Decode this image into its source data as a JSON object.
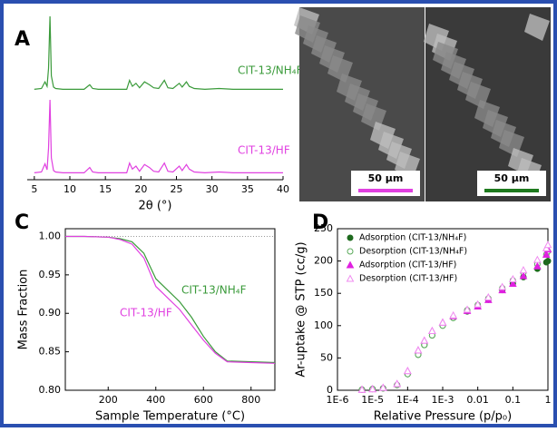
{
  "chart_data": [
    {
      "type": "line",
      "panel_label": "A",
      "xlabel": "2θ (°)",
      "xlim": [
        4,
        40
      ],
      "xticks": [
        5,
        10,
        15,
        20,
        25,
        30,
        35,
        40
      ],
      "ylim": [
        0,
        100
      ],
      "legend": "inline",
      "x": [
        5,
        6,
        6.5,
        6.8,
        7,
        7.2,
        7.4,
        7.7,
        8,
        9,
        10,
        12,
        12.8,
        13.2,
        14,
        16,
        18,
        18.4,
        18.8,
        19.3,
        19.8,
        20.5,
        21.2,
        21.8,
        22.5,
        23.3,
        23.8,
        24.5,
        25.4,
        25.8,
        26.4,
        26.8,
        27.5,
        29,
        31,
        33,
        35,
        37,
        40
      ],
      "series": [
        {
          "name": "CIT-13/NH₄F",
          "color": "#3a9a3a",
          "values": [
            2,
            3,
            12,
            6,
            30,
            100,
            20,
            5,
            3,
            2,
            2,
            2,
            8,
            3,
            2,
            2,
            2,
            14,
            6,
            10,
            4,
            12,
            8,
            4,
            3,
            14,
            4,
            3,
            10,
            5,
            12,
            6,
            3,
            2,
            3,
            2,
            2,
            2,
            2
          ]
        },
        {
          "name": "CIT-13/HF",
          "color": "#e040e0",
          "values": [
            2,
            3,
            14,
            6,
            35,
            100,
            22,
            5,
            3,
            2,
            2,
            2,
            9,
            3,
            2,
            2,
            2,
            15,
            7,
            11,
            4,
            13,
            9,
            4,
            3,
            15,
            4,
            3,
            11,
            5,
            13,
            7,
            3,
            2,
            3,
            2,
            2,
            2,
            2
          ]
        }
      ]
    },
    {
      "type": "image",
      "panel_label": "B",
      "scale_bars": [
        {
          "label": "50 µm",
          "color": "#e040e0"
        },
        {
          "label": "50 µm",
          "color": "#1e7a1e"
        }
      ]
    },
    {
      "type": "line",
      "panel_label": "C",
      "xlabel": "Sample Temperature (°C)",
      "ylabel": "Mass Fraction",
      "xlim": [
        20,
        900
      ],
      "xticks": [
        200,
        400,
        600,
        800
      ],
      "ylim": [
        0.8,
        1.01
      ],
      "yticks": [
        {
          "value": 0.8,
          "label": "0.80"
        },
        {
          "value": 0.85,
          "label": "0.85"
        },
        {
          "value": 0.9,
          "label": "0.90"
        },
        {
          "value": 0.95,
          "label": "0.95"
        },
        {
          "value": 1.0,
          "label": "1.00"
        }
      ],
      "reference_line": 1.0,
      "legend": "inline",
      "x": [
        20,
        100,
        200,
        250,
        300,
        350,
        400,
        450,
        500,
        550,
        600,
        650,
        700,
        800,
        900
      ],
      "series": [
        {
          "name": "CIT-13/NH₄F",
          "color": "#3a9a3a",
          "values": [
            1,
            1,
            0.999,
            0.997,
            0.993,
            0.978,
            0.945,
            0.93,
            0.915,
            0.895,
            0.87,
            0.85,
            0.838,
            0.837,
            0.836
          ]
        },
        {
          "name": "CIT-13/HF",
          "color": "#e040e0",
          "values": [
            1,
            1,
            0.999,
            0.996,
            0.99,
            0.972,
            0.935,
            0.92,
            0.905,
            0.885,
            0.865,
            0.848,
            0.837,
            0.836,
            0.835
          ]
        }
      ]
    },
    {
      "type": "scatter",
      "panel_label": "D",
      "xlabel": "Relative Pressure (p/p₀)",
      "ylabel": "Ar-uptake @ STP (cc/g)",
      "xlog": true,
      "xlim": [
        1e-06,
        1
      ],
      "xticks": [
        {
          "value": 1e-06,
          "label": "1E-6"
        },
        {
          "value": 1e-05,
          "label": "1E-5"
        },
        {
          "value": 0.0001,
          "label": "1E-4"
        },
        {
          "value": 0.001,
          "label": "1E-3"
        },
        0.01,
        0.1,
        1
      ],
      "ylim": [
        0,
        250
      ],
      "yticks": [
        0,
        50,
        100,
        150,
        200,
        250
      ],
      "legend": "upper left",
      "x": [
        5e-06,
        1e-05,
        2e-05,
        5e-05,
        0.0001,
        0.0002,
        0.0003,
        0.0005,
        0.001,
        0.002,
        0.005,
        0.01,
        0.02,
        0.05,
        0.1,
        0.2,
        0.5,
        0.9,
        1
      ],
      "series": [
        {
          "name": "Adsorption (CIT-13/NH₄F)",
          "color": "#1e6a1e",
          "marker": "circle",
          "filled": true,
          "values": [
            1,
            2,
            3,
            8,
            25,
            55,
            70,
            85,
            100,
            112,
            122,
            130,
            140,
            155,
            165,
            175,
            188,
            198,
            200
          ]
        },
        {
          "name": "Desorption (CIT-13/NH₄F)",
          "color": "#5aaa5a",
          "marker": "circle",
          "filled": false,
          "values": [
            1,
            2,
            3,
            8,
            25,
            55,
            70,
            85,
            100,
            112,
            124,
            132,
            142,
            158,
            170,
            182,
            195,
            210,
            215
          ]
        },
        {
          "name": "Adsorption (CIT-13/HF)",
          "color": "#e020e0",
          "marker": "triangle",
          "filled": true,
          "values": [
            1,
            2,
            4,
            10,
            30,
            62,
            77,
            92,
            105,
            115,
            123,
            130,
            140,
            155,
            165,
            177,
            192,
            210,
            218
          ]
        },
        {
          "name": "Desorption (CIT-13/HF)",
          "color": "#f08cf0",
          "marker": "triangle",
          "filled": false,
          "values": [
            1,
            2,
            4,
            10,
            30,
            62,
            77,
            92,
            105,
            116,
            125,
            133,
            144,
            160,
            172,
            186,
            202,
            220,
            225
          ]
        }
      ]
    }
  ]
}
